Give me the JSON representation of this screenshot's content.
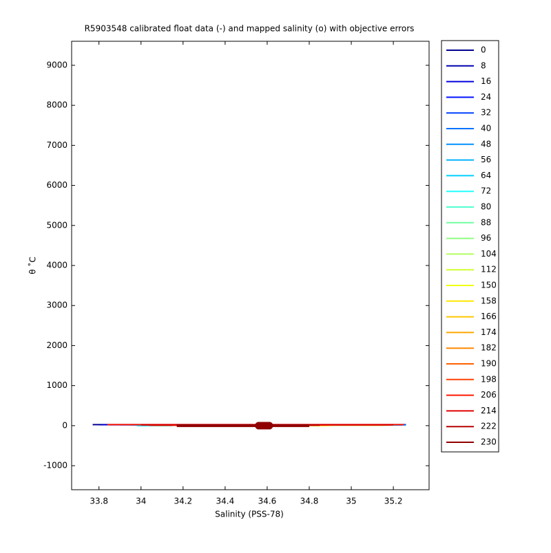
{
  "chart_data": {
    "type": "line",
    "title": "R5903548 calibrated float data (-) and mapped salinity (o) with objective errors",
    "xlabel": "Salinity (PSS-78)",
    "ylabel": "θ ˚C",
    "xlim": [
      33.67,
      35.37
    ],
    "xticks": [
      33.8,
      34,
      34.2,
      34.4,
      34.6,
      34.8,
      35,
      35.2
    ],
    "ylim": [
      -1600,
      9600
    ],
    "yticks": [
      -1000,
      0,
      1000,
      2000,
      3000,
      4000,
      5000,
      6000,
      7000,
      8000,
      9000
    ],
    "series": [
      {
        "name": "0",
        "color": "#00008f",
        "x": [
          33.77,
          35.26
        ],
        "values": [
          25,
          25
        ]
      },
      {
        "name": "8",
        "color": "#0000b0",
        "x": [
          33.8,
          35.25
        ],
        "values": [
          24,
          24
        ]
      },
      {
        "name": "16",
        "color": "#0000df",
        "x": [
          33.82,
          35.25
        ],
        "values": [
          23,
          23
        ]
      },
      {
        "name": "24",
        "color": "#0010ff",
        "x": [
          33.85,
          35.24
        ],
        "values": [
          22,
          22
        ]
      },
      {
        "name": "32",
        "color": "#0040ff",
        "x": [
          33.9,
          35.24
        ],
        "values": [
          21,
          21
        ]
      },
      {
        "name": "40",
        "color": "#0070ff",
        "x": [
          33.95,
          35.26
        ],
        "values": [
          20,
          20
        ]
      },
      {
        "name": "48",
        "color": "#0090ff",
        "x": [
          33.97,
          35.23
        ],
        "values": [
          19,
          19
        ]
      },
      {
        "name": "56",
        "color": "#00b0ff",
        "x": [
          34.0,
          35.22
        ],
        "values": [
          18,
          18
        ]
      },
      {
        "name": "64",
        "color": "#00d0ff",
        "x": [
          33.98,
          34.15
        ],
        "values": [
          2,
          2
        ]
      },
      {
        "name": "72",
        "color": "#20ffff",
        "x": [
          34.0,
          34.14
        ],
        "values": [
          1,
          1
        ]
      },
      {
        "name": "80",
        "color": "#50ffd0",
        "x": [
          34.05,
          35.2
        ],
        "values": [
          15,
          15
        ]
      },
      {
        "name": "88",
        "color": "#70ffa0",
        "x": [
          34.1,
          35.2
        ],
        "values": [
          14,
          14
        ]
      },
      {
        "name": "96",
        "color": "#90ff80",
        "x": [
          34.12,
          35.19
        ],
        "values": [
          13,
          13
        ]
      },
      {
        "name": "104",
        "color": "#b0ff60",
        "x": [
          34.15,
          35.18
        ],
        "values": [
          12,
          12
        ]
      },
      {
        "name": "112",
        "color": "#d0ff30",
        "x": [
          34.2,
          35.15
        ],
        "values": [
          11,
          11
        ]
      },
      {
        "name": "150",
        "color": "#f0ff10",
        "x": [
          34.3,
          34.9
        ],
        "values": [
          5,
          5
        ]
      },
      {
        "name": "158",
        "color": "#ffe800",
        "x": [
          34.35,
          34.88
        ],
        "values": [
          4,
          4
        ]
      },
      {
        "name": "166",
        "color": "#ffc800",
        "x": [
          34.4,
          34.85
        ],
        "values": [
          3,
          3
        ]
      },
      {
        "name": "174",
        "color": "#ffa800",
        "x": [
          34.45,
          34.8
        ],
        "values": [
          6,
          6
        ]
      },
      {
        "name": "182",
        "color": "#ff8800",
        "x": [
          34.5,
          34.75
        ],
        "values": [
          7,
          7
        ]
      },
      {
        "name": "190",
        "color": "#ff6000",
        "x": [
          34.55,
          34.7
        ],
        "values": [
          8,
          8
        ]
      },
      {
        "name": "198",
        "color": "#ff4000",
        "x": [
          34.04,
          34.2
        ],
        "values": [
          9,
          9
        ]
      },
      {
        "name": "206",
        "color": "#ff1800",
        "x": [
          33.84,
          35.25
        ],
        "values": [
          26,
          26
        ]
      },
      {
        "name": "214",
        "color": "#e00000",
        "x": [
          34.0,
          35.2
        ],
        "values": [
          16,
          16
        ]
      },
      {
        "name": "222",
        "color": "#b80000",
        "x": [
          34.17,
          34.85
        ],
        "values": [
          10,
          10
        ]
      },
      {
        "name": "230",
        "color": "#900000",
        "x": [
          34.17,
          34.8
        ],
        "values": [
          0,
          0
        ]
      }
    ],
    "markers": {
      "color": "#900000",
      "x": [
        34.56,
        34.57,
        34.58,
        34.59,
        34.6,
        34.61
      ],
      "values": [
        0,
        0,
        0,
        0,
        0,
        0
      ]
    }
  }
}
